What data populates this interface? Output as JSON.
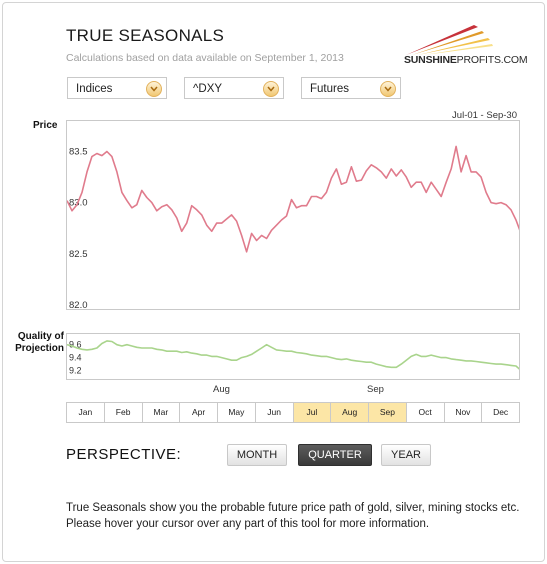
{
  "header": {
    "title": "TRUE SEASONALS",
    "subtitle": "Calculations based on data available on September 1, 2013"
  },
  "logo": {
    "bold": "SUNSHINE",
    "light": "PROFITS.COM"
  },
  "selectors": {
    "market": "Indices",
    "symbol": "^DXY",
    "type": "Futures"
  },
  "date_range": "Jul-01 - Sep-30",
  "labels": {
    "price": "Price",
    "quality_line1": "Quality of",
    "quality_line2": "Projection",
    "x_aug": "Aug",
    "x_sep": "Sep"
  },
  "months": [
    "Jan",
    "Feb",
    "Mar",
    "Apr",
    "May",
    "Jun",
    "Jul",
    "Aug",
    "Sep",
    "Oct",
    "Nov",
    "Dec"
  ],
  "active_months": [
    "Jul",
    "Aug",
    "Sep"
  ],
  "perspective": {
    "label": "PERSPECTIVE:",
    "options": [
      "MONTH",
      "QUARTER",
      "YEAR"
    ],
    "selected": "QUARTER"
  },
  "description": "True Seasonals show you the probable future price path of gold, silver, mining stocks etc. Please hover your cursor over any part of this tool for more information.",
  "colors": {
    "price_line": "#e07b8c",
    "quality_line": "#a9d48c",
    "active_month": "#fce6a6"
  },
  "chart_data": [
    {
      "type": "line",
      "title": "",
      "ylabel": "Price",
      "ylim": [
        82.0,
        83.7
      ],
      "yticks": [
        82.0,
        82.5,
        83.0,
        83.5
      ],
      "x_ticks": [
        "Aug",
        "Sep"
      ],
      "x_range": [
        1,
        92
      ],
      "series": [
        {
          "values": [
            83.02,
            82.92,
            82.98,
            83.1,
            83.3,
            83.45,
            83.48,
            83.46,
            83.5,
            83.45,
            83.3,
            83.1,
            83.02,
            82.95,
            82.98,
            83.12,
            83.05,
            83.0,
            82.92,
            82.96,
            82.98,
            82.93,
            82.85,
            82.72,
            82.8,
            82.97,
            82.93,
            82.88,
            82.78,
            82.72,
            82.8,
            82.8,
            82.84,
            82.88,
            82.82,
            82.68,
            82.52,
            82.7,
            82.63,
            82.68,
            82.65,
            82.73,
            82.78,
            82.83,
            82.87,
            83.03,
            82.95,
            82.97,
            82.97,
            83.06,
            83.06,
            83.04,
            83.1,
            83.24,
            83.33,
            83.18,
            83.2,
            83.35,
            83.21,
            83.22,
            83.31,
            83.37,
            83.34,
            83.3,
            83.24,
            83.33,
            83.26,
            83.32,
            83.25,
            83.15,
            83.2,
            83.2,
            83.1,
            83.2,
            83.13,
            83.06,
            83.2,
            83.33,
            83.55,
            83.3,
            83.46,
            83.3,
            83.3,
            83.25,
            83.1,
            83.0,
            82.99,
            83.0,
            82.98,
            82.93,
            82.83,
            82.7
          ]
        }
      ]
    },
    {
      "type": "line",
      "title": "",
      "ylabel": "Quality of Projection",
      "ylim": [
        9.1,
        9.72
      ],
      "yticks": [
        9.2,
        9.4,
        9.6
      ],
      "x_range": [
        1,
        92
      ],
      "series": [
        {
          "values": [
            9.6,
            9.58,
            9.55,
            9.53,
            9.52,
            9.53,
            9.55,
            9.62,
            9.66,
            9.65,
            9.6,
            9.58,
            9.6,
            9.58,
            9.56,
            9.55,
            9.55,
            9.55,
            9.53,
            9.52,
            9.5,
            9.5,
            9.5,
            9.48,
            9.49,
            9.47,
            9.46,
            9.44,
            9.44,
            9.42,
            9.42,
            9.4,
            9.38,
            9.36,
            9.36,
            9.4,
            9.42,
            9.45,
            9.5,
            9.55,
            9.6,
            9.56,
            9.52,
            9.51,
            9.5,
            9.5,
            9.48,
            9.47,
            9.46,
            9.44,
            9.43,
            9.42,
            9.42,
            9.4,
            9.38,
            9.37,
            9.38,
            9.36,
            9.35,
            9.34,
            9.33,
            9.33,
            9.3,
            9.28,
            9.26,
            9.25,
            9.25,
            9.3,
            9.36,
            9.42,
            9.45,
            9.42,
            9.42,
            9.44,
            9.42,
            9.4,
            9.4,
            9.38,
            9.37,
            9.36,
            9.35,
            9.35,
            9.34,
            9.33,
            9.32,
            9.31,
            9.3,
            9.3,
            9.29,
            9.28,
            9.27,
            9.2
          ]
        }
      ]
    }
  ]
}
